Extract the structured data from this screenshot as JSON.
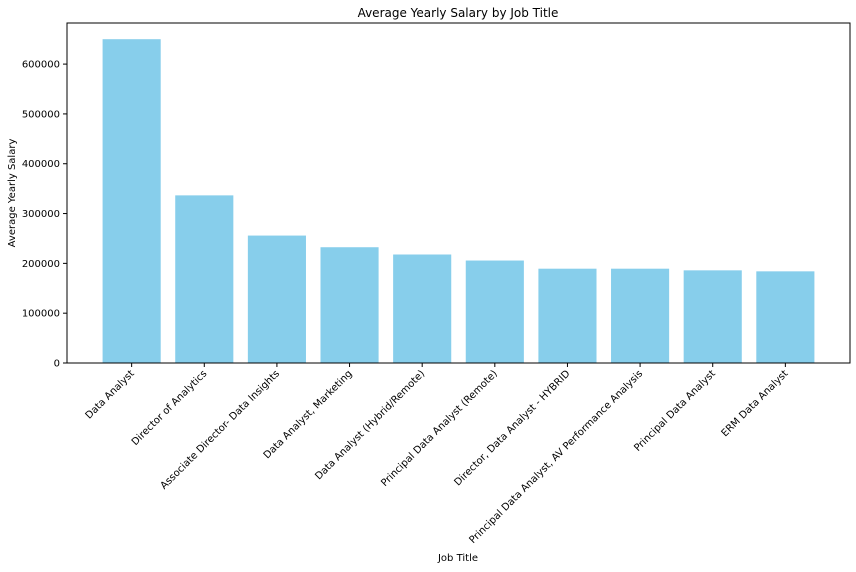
{
  "chart_data": {
    "type": "bar",
    "title": "Average Yearly Salary by Job Title",
    "xlabel": "Job Title",
    "ylabel": "Average Yearly Salary",
    "categories": [
      "Data Analyst",
      "Director of Analytics",
      "Associate Director- Data Insights",
      "Data Analyst, Marketing",
      "Data Analyst (Hybrid/Remote)",
      "Principal Data Analyst (Remote)",
      "Director, Data Analyst - HYBRID",
      "Principal Data Analyst, AV Performance Analysis",
      "Principal Data Analyst",
      "ERM Data Analyst"
    ],
    "values": [
      650000,
      336500,
      255800,
      232400,
      217800,
      205700,
      189300,
      189300,
      186000,
      184000
    ],
    "ylim": [
      0,
      682500
    ],
    "yticks": [
      0,
      100000,
      200000,
      300000,
      400000,
      500000,
      600000
    ],
    "ytick_labels": [
      "0",
      "100000",
      "200000",
      "300000",
      "400000",
      "500000",
      "600000"
    ],
    "bar_color": "#87ceeb",
    "grid": false,
    "legend": "none"
  }
}
